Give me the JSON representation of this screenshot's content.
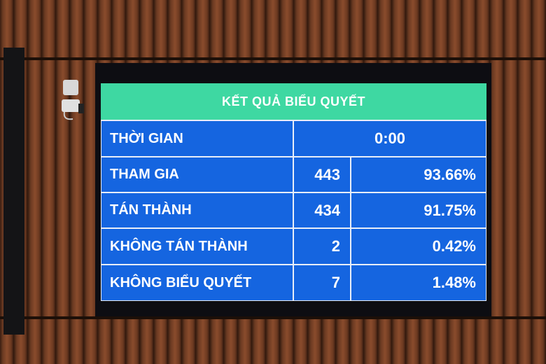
{
  "screen": {
    "title": "KẾT QUẢ BIỂU QUYẾT",
    "time": {
      "label": "THỜI GIAN",
      "value": "0:00"
    },
    "rows": [
      {
        "label": "THAM GIA",
        "count": "443",
        "percent": "93.66%"
      },
      {
        "label": "TÁN THÀNH",
        "count": "434",
        "percent": "91.75%"
      },
      {
        "label": "KHÔNG TÁN THÀNH",
        "count": "2",
        "percent": "0.42%"
      },
      {
        "label": "KHÔNG BIỂU QUYẾT",
        "count": "7",
        "percent": "1.48%"
      }
    ],
    "colors": {
      "header": "#3ed8a2",
      "cell": "#1565e0",
      "wood": "#7a4228"
    }
  }
}
